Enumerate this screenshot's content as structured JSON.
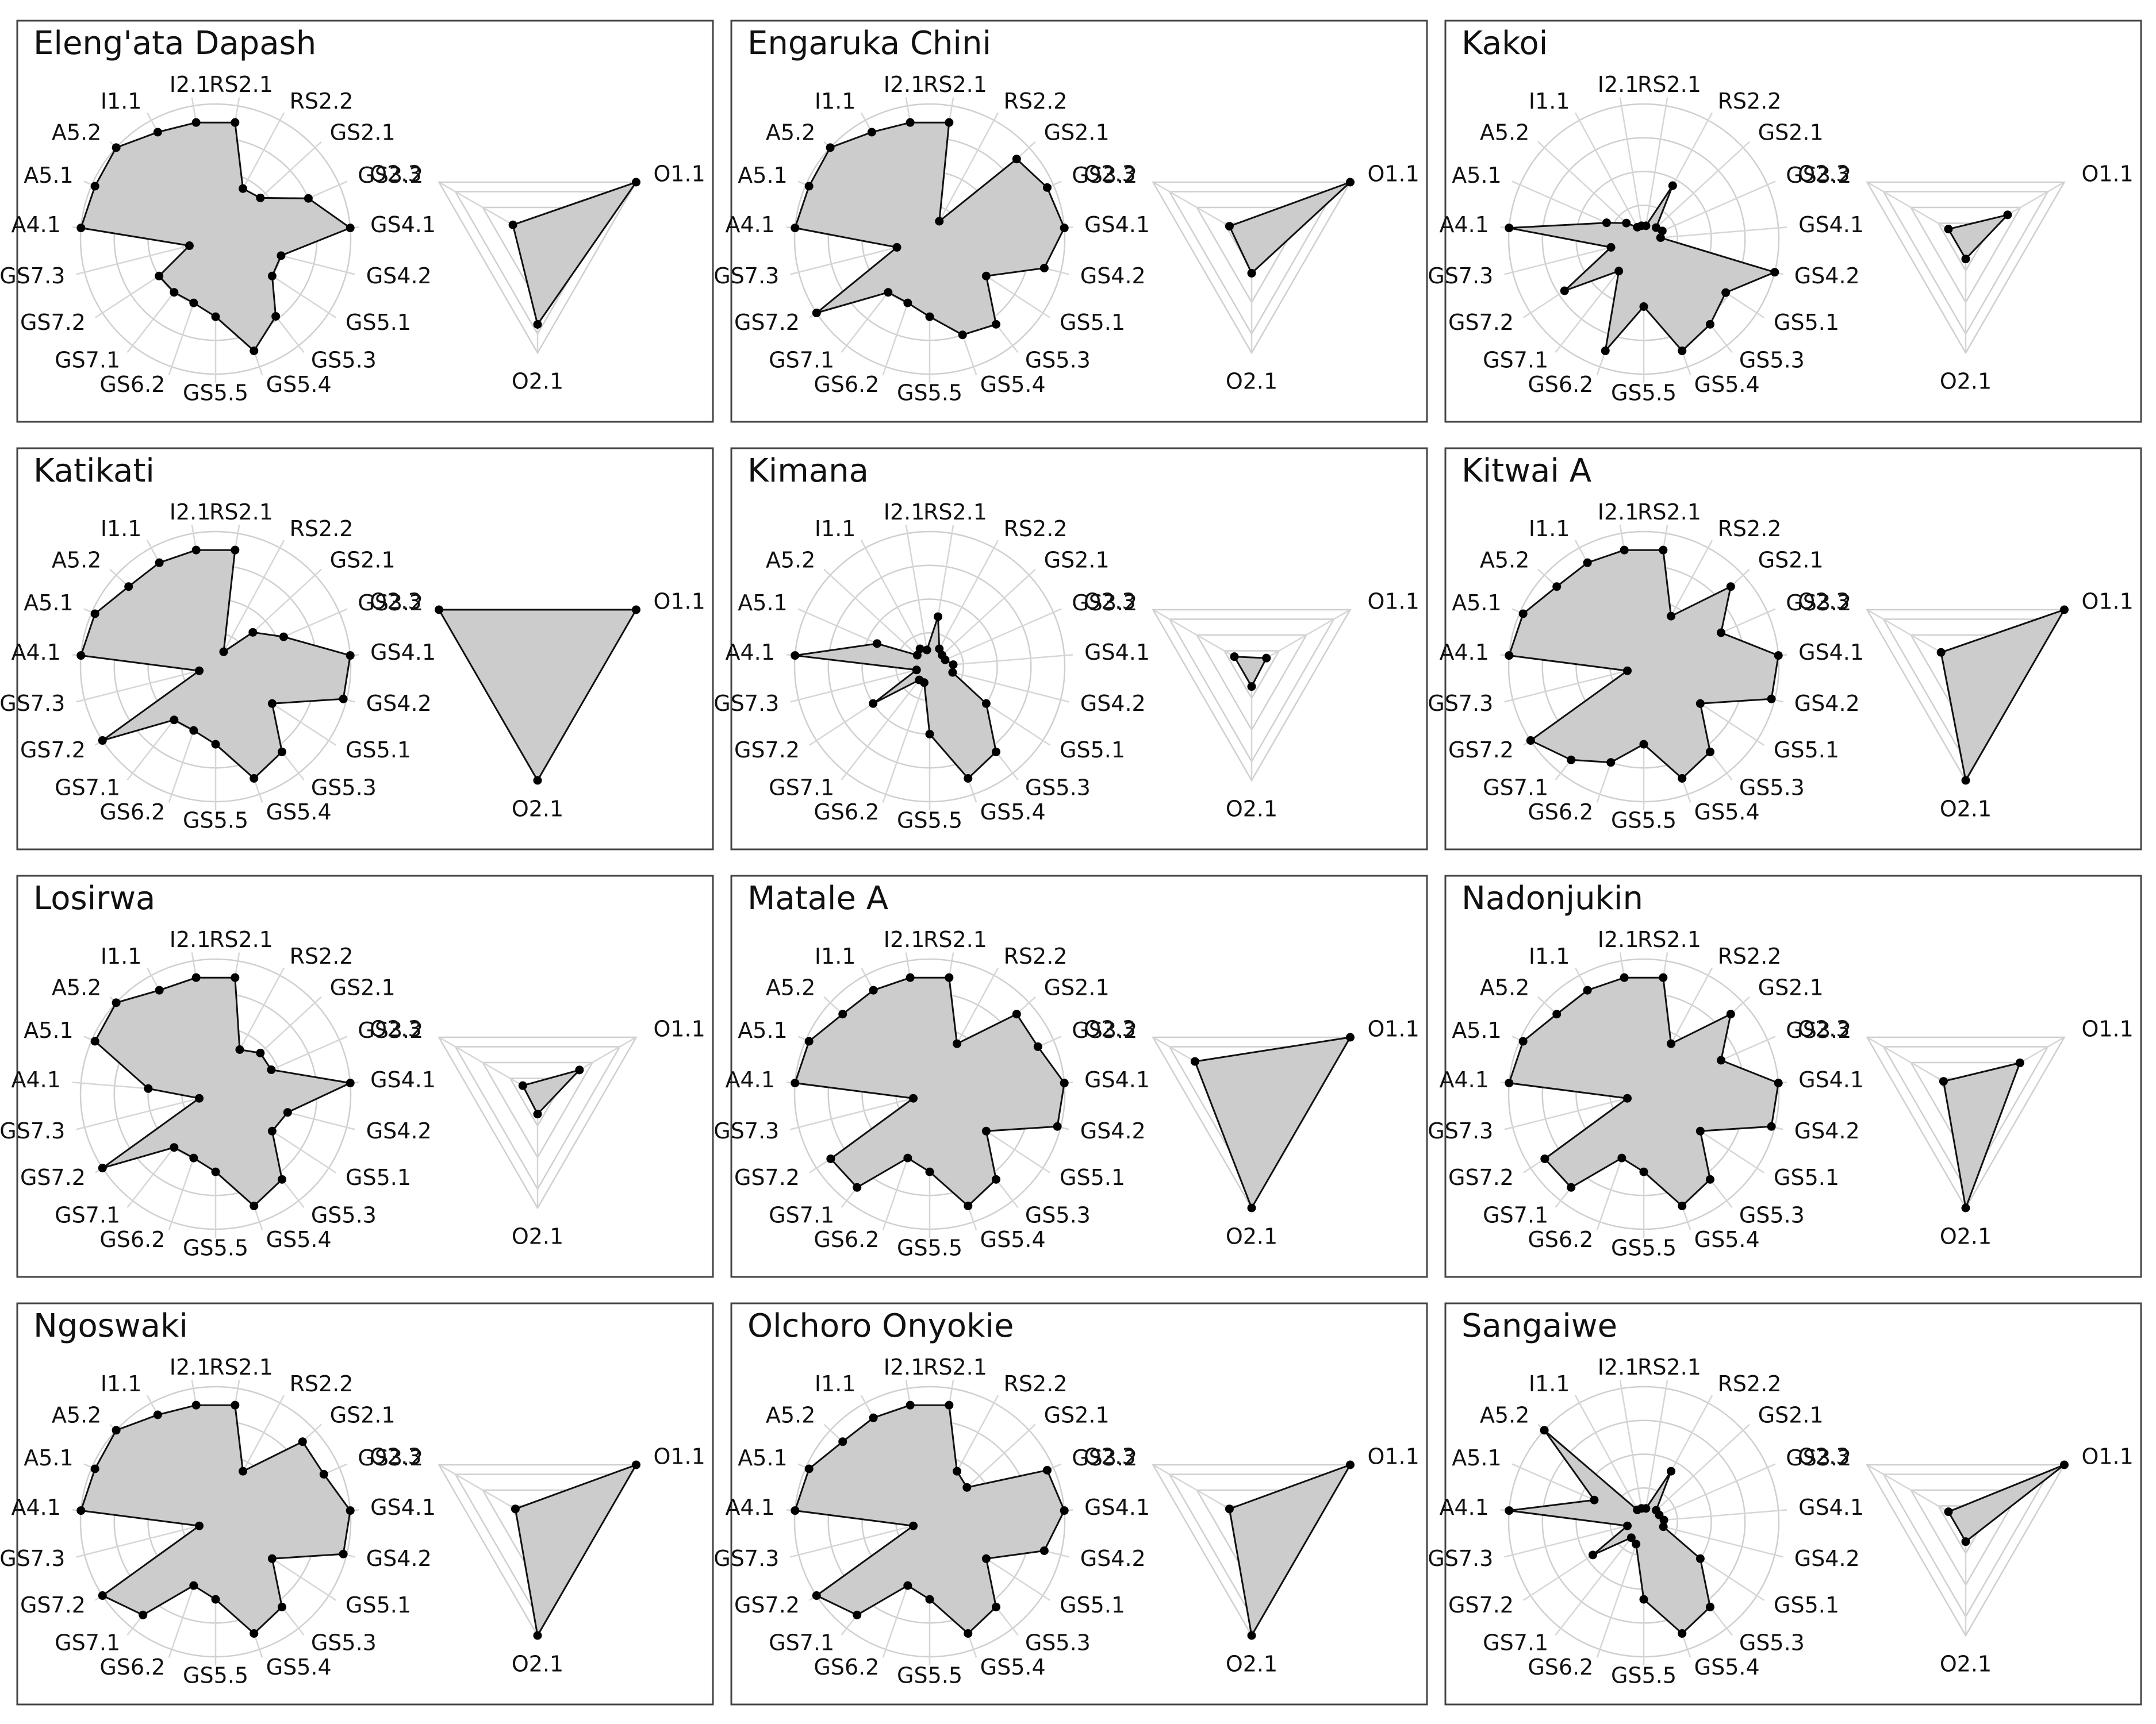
{
  "chart_data": {
    "type": "radar",
    "scale_max": 4,
    "grid_levels": 4,
    "outcome_grid_levels": 3,
    "colors": {
      "fill": "#cccccc",
      "stroke": "#111111",
      "point": "#000000",
      "grid": "#cfcfcf",
      "frame": "#444444"
    },
    "axes": [
      "RS2.1",
      "RS2.2",
      "GS2.1",
      "GS3.2",
      "GS4.1",
      "GS4.2",
      "GS5.1",
      "GS5.3",
      "GS5.4",
      "GS5.5",
      "GS6.2",
      "GS7.1",
      "GS7.2",
      "GS7.3",
      "A4.1",
      "A5.1",
      "A5.2",
      "I1.1",
      "I2.1"
    ],
    "outcome_axes": [
      "O1.1",
      "O2.1",
      "O2.3"
    ],
    "panels": [
      {
        "title": "Eleng'ata Dapash",
        "values": [
          3.5,
          1.7,
          1.8,
          3,
          4,
          2,
          2,
          2.9,
          3.5,
          2.3,
          2,
          2,
          2,
          0.8,
          4,
          3.9,
          4,
          3.6,
          3.5
        ],
        "outcome_values": [
          4,
          3,
          1
        ]
      },
      {
        "title": "Engaruka Chini",
        "values": [
          3.5,
          0.6,
          3.5,
          3.8,
          4,
          3.5,
          2,
          3.2,
          3,
          2.3,
          2,
          2,
          4,
          1,
          4,
          3.9,
          4,
          3.6,
          3.5
        ],
        "outcome_values": [
          4,
          1.2,
          0.9
        ]
      },
      {
        "title": "Kakoi",
        "values": [
          0.4,
          1.8,
          0.5,
          0.6,
          0.5,
          4,
          2.9,
          3.2,
          3.5,
          2,
          3.5,
          1.2,
          2.8,
          1,
          4,
          1.2,
          0.7,
          0.4,
          0.4
        ],
        "outcome_values": [
          1.7,
          0.7,
          0.7
        ]
      },
      {
        "title": "Katikati",
        "values": [
          3.5,
          0.5,
          1.5,
          2.2,
          4,
          3.9,
          2,
          3.2,
          3.5,
          2.3,
          2,
          2,
          4,
          0.5,
          4,
          3.9,
          3.5,
          3.5,
          3.5
        ],
        "outcome_values": [
          4,
          4,
          4
        ]
      },
      {
        "title": "Kimana",
        "values": [
          1.5,
          0.6,
          0.5,
          0.5,
          0.7,
          0.7,
          2,
          3.2,
          3.5,
          2,
          0.5,
          0.5,
          2,
          0.4,
          4,
          1.7,
          0.5,
          0.6,
          0.5
        ],
        "outcome_values": [
          0.6,
          0.7,
          0.7
        ]
      },
      {
        "title": "Kitwai A",
        "values": [
          3.5,
          1.7,
          3.5,
          2.5,
          4,
          3.9,
          2,
          3.2,
          3.5,
          2.3,
          3,
          3.5,
          4,
          0.5,
          4,
          3.9,
          3.5,
          3.5,
          3.5
        ],
        "outcome_values": [
          4,
          4,
          1
        ]
      },
      {
        "title": "Losirwa",
        "values": [
          3.5,
          1.5,
          1.8,
          1.8,
          4,
          2.2,
          2,
          3.2,
          3.5,
          2.3,
          2,
          2,
          4,
          0.5,
          2,
          3.9,
          4,
          3.5,
          3.5
        ],
        "outcome_values": [
          1.7,
          0.7,
          0.6
        ]
      },
      {
        "title": "Matale A",
        "values": [
          3.5,
          1.7,
          3.5,
          3.5,
          4,
          3.9,
          2,
          3.2,
          3.5,
          2.3,
          2,
          3.5,
          3.5,
          0.5,
          4,
          3.9,
          3.5,
          3.5,
          3.5
        ],
        "outcome_values": [
          4,
          4,
          2.3
        ]
      },
      {
        "title": "Nadonjukin",
        "values": [
          3.5,
          1.7,
          3.5,
          2.5,
          4,
          3.9,
          2,
          3.2,
          3.5,
          2.3,
          2,
          3.5,
          3.5,
          0.5,
          4,
          3.9,
          3.5,
          3.5,
          3.5
        ],
        "outcome_values": [
          2.2,
          4,
          0.9
        ]
      },
      {
        "title": "Ngoswaki",
        "values": [
          3.5,
          1.7,
          3.5,
          3.5,
          4,
          3.9,
          2,
          3.2,
          3.5,
          2.3,
          2,
          3.5,
          4,
          0.5,
          4,
          3.9,
          4,
          3.6,
          3.5
        ],
        "outcome_values": [
          4,
          4,
          0.9
        ]
      },
      {
        "title": "Olchoro Onyokie",
        "values": [
          3.5,
          1.7,
          1.5,
          3.8,
          4,
          3.5,
          2,
          3.2,
          3.5,
          2.3,
          2,
          3.5,
          4,
          0.5,
          4,
          3.9,
          3.5,
          3.5,
          3.5
        ],
        "outcome_values": [
          4,
          4,
          0.9
        ]
      },
      {
        "title": "Sangaiwe",
        "values": [
          0.4,
          1.7,
          0.5,
          0.5,
          0.6,
          0.6,
          2,
          3.2,
          3.5,
          2.3,
          0.7,
          0.6,
          1.8,
          0.5,
          4,
          1.6,
          4,
          0.4,
          0.4
        ],
        "outcome_values": [
          4,
          0.7,
          0.7
        ]
      }
    ]
  }
}
